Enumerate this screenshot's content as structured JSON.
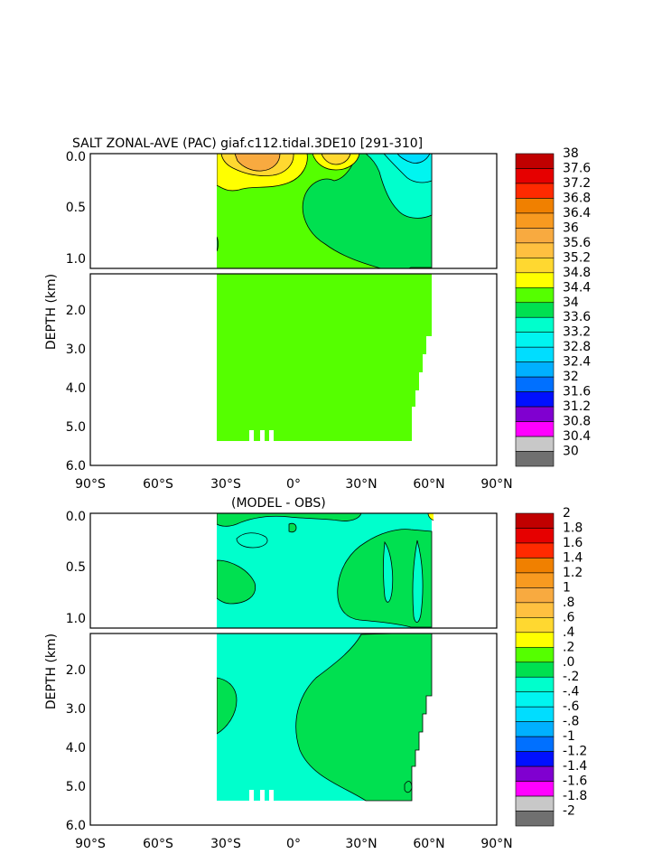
{
  "chart_data": [
    {
      "type": "heatmap",
      "title": "SALT ZONAL-AVE (PAC) giaf.c112.tidal.3DE10 [291-310]",
      "xlabel": "",
      "ylabel": "DEPTH (km)",
      "xlim": [
        -90,
        90
      ],
      "ylim": [
        6.0,
        0.0
      ],
      "x_ticks": [
        -90,
        -60,
        -30,
        0,
        30,
        60,
        90
      ],
      "x_tick_labels": [
        "90°S",
        "60°S",
        "30°S",
        "0°",
        "30°N",
        "60°N",
        "90°N"
      ],
      "y_tick_labels_top": [
        "0.0",
        "0.5",
        "1.0"
      ],
      "y_tick_labels_bottom": [
        "2.0",
        "3.0",
        "4.0",
        "5.0",
        "6.0"
      ],
      "data_extent_lat": [
        -34,
        62
      ],
      "colorbar_labels": [
        "38",
        "37.6",
        "37.2",
        "36.8",
        "36.4",
        "36",
        "35.6",
        "35.2",
        "34.8",
        "34.4",
        "34",
        "33.6",
        "33.2",
        "32.8",
        "32.4",
        "32",
        "31.6",
        "31.2",
        "30.8",
        "30.4",
        "30"
      ],
      "colorbar_colors": [
        "#c00000",
        "#e60000",
        "#ff2a00",
        "#f08000",
        "#f89a20",
        "#f8aa40",
        "#ffc040",
        "#ffd830",
        "#ffff00",
        "#55ff00",
        "#00e050",
        "#00ffcc",
        "#00f5f0",
        "#00ddff",
        "#00b0ff",
        "#0070ff",
        "#0010ff",
        "#8000d0",
        "#ff00ff",
        "#c8c8c8",
        "#707070"
      ]
    },
    {
      "type": "heatmap",
      "title": "(MODEL - OBS)",
      "xlabel": "",
      "ylabel": "DEPTH (km)",
      "xlim": [
        -90,
        90
      ],
      "ylim": [
        6.0,
        0.0
      ],
      "x_ticks": [
        -90,
        -60,
        -30,
        0,
        30,
        60,
        90
      ],
      "x_tick_labels": [
        "90°S",
        "60°S",
        "30°S",
        "0°",
        "30°N",
        "60°N",
        "90°N"
      ],
      "y_tick_labels_top": [
        "0.0",
        "0.5",
        "1.0"
      ],
      "y_tick_labels_bottom": [
        "2.0",
        "3.0",
        "4.0",
        "5.0",
        "6.0"
      ],
      "data_extent_lat": [
        -34,
        62
      ],
      "colorbar_labels": [
        "2",
        "1.8",
        "1.6",
        "1.4",
        "1.2",
        "1",
        ".8",
        ".6",
        ".4",
        ".2",
        ".0",
        "-.2",
        "-.4",
        "-.6",
        "-.8",
        "-1",
        "-1.2",
        "-1.4",
        "-1.6",
        "-1.8",
        "-2"
      ],
      "colorbar_colors": [
        "#c00000",
        "#e60000",
        "#ff2a00",
        "#f08000",
        "#f89a20",
        "#f8aa40",
        "#ffc040",
        "#ffd830",
        "#ffff00",
        "#55ff00",
        "#00e050",
        "#00ffcc",
        "#00f5f0",
        "#00ddff",
        "#00b0ff",
        "#0070ff",
        "#0010ff",
        "#8000d0",
        "#ff00ff",
        "#c8c8c8",
        "#707070"
      ]
    }
  ]
}
